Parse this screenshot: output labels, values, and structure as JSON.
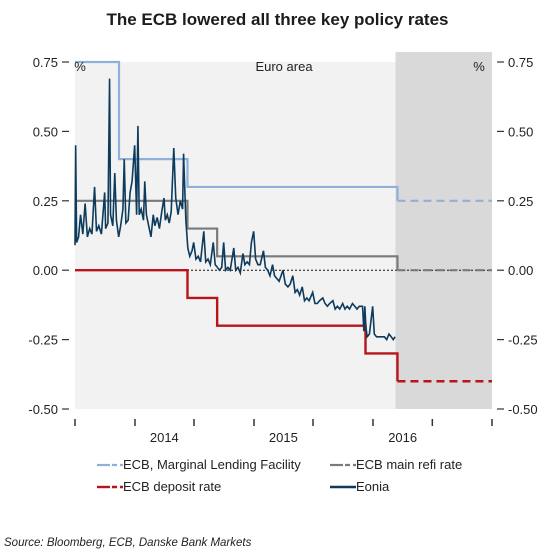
{
  "chart_data": {
    "type": "line",
    "title": "The ECB lowered all three key policy rates",
    "annotation": "Euro area",
    "unit_left": "%",
    "unit_right": "%",
    "ylim": [
      -0.5,
      0.75
    ],
    "yticks": [
      -0.5,
      -0.25,
      0.0,
      0.25,
      0.5,
      0.75
    ],
    "ytick_labels_left": [
      "-0.50",
      "-0.25",
      "0.00",
      "0.25",
      "0.50",
      "0.75"
    ],
    "ytick_labels_right": [
      "-0.50",
      "-0.25",
      "0.00",
      "0.25",
      "0.50",
      "0.75"
    ],
    "xlim": [
      "2013-07-01",
      "2016-12-31"
    ],
    "x_tick_dates": [
      "2013-07-01",
      "2014-01-01",
      "2014-07-01",
      "2015-01-01",
      "2015-07-01",
      "2016-01-01",
      "2016-07-01",
      "2016-12-31"
    ],
    "x_labels": [
      {
        "label": "2014",
        "date": "2014-04-01"
      },
      {
        "label": "2015",
        "date": "2015-04-01"
      },
      {
        "label": "2016",
        "date": "2016-04-01"
      }
    ],
    "forecast_start": "2016-03-10",
    "grid": false,
    "legend_position": "bottom",
    "series": [
      {
        "name": "ECB, Marginal Lending Facility",
        "color": "#8fb0d8",
        "style": "step",
        "points": [
          [
            "2013-07-01",
            0.75
          ],
          [
            "2013-11-13",
            0.4
          ],
          [
            "2014-06-11",
            0.3
          ],
          [
            "2015-12-09",
            0.3
          ],
          [
            "2016-03-16",
            0.25
          ]
        ],
        "forecast": [
          [
            "2016-03-16",
            0.25
          ],
          [
            "2016-12-31",
            0.25
          ]
        ]
      },
      {
        "name": "ECB main refi rate",
        "color": "#7a7a7a",
        "style": "step",
        "points": [
          [
            "2013-07-01",
            0.25
          ],
          [
            "2013-11-13",
            0.25
          ],
          [
            "2014-06-11",
            0.15
          ],
          [
            "2014-09-10",
            0.05
          ],
          [
            "2016-03-16",
            0.0
          ]
        ],
        "forecast": [
          [
            "2016-03-16",
            0.0
          ],
          [
            "2016-12-31",
            0.0
          ]
        ]
      },
      {
        "name": "ECB deposit rate",
        "color": "#b8141b",
        "style": "step",
        "points": [
          [
            "2013-07-01",
            0.0
          ],
          [
            "2014-06-11",
            -0.1
          ],
          [
            "2014-09-10",
            -0.2
          ],
          [
            "2015-12-09",
            -0.3
          ],
          [
            "2016-03-16",
            -0.4
          ]
        ],
        "forecast": [
          [
            "2016-03-16",
            -0.4
          ],
          [
            "2016-12-31",
            -0.4
          ]
        ]
      },
      {
        "name": "Eonia",
        "color": "#0e3a5c",
        "style": "line",
        "points": [
          [
            "2013-07-01",
            0.09
          ],
          [
            "2013-07-03",
            0.45
          ],
          [
            "2013-07-06",
            0.1
          ],
          [
            "2013-07-12",
            0.12
          ],
          [
            "2013-07-18",
            0.2
          ],
          [
            "2013-07-25",
            0.13
          ],
          [
            "2013-08-01",
            0.24
          ],
          [
            "2013-08-08",
            0.12
          ],
          [
            "2013-08-15",
            0.15
          ],
          [
            "2013-08-22",
            0.13
          ],
          [
            "2013-08-30",
            0.3
          ],
          [
            "2013-09-05",
            0.14
          ],
          [
            "2013-09-12",
            0.16
          ],
          [
            "2013-09-20",
            0.13
          ],
          [
            "2013-09-30",
            0.28
          ],
          [
            "2013-10-03",
            0.15
          ],
          [
            "2013-10-10",
            0.17
          ],
          [
            "2013-10-15",
            0.69
          ],
          [
            "2013-10-18",
            0.2
          ],
          [
            "2013-10-25",
            0.16
          ],
          [
            "2013-10-31",
            0.35
          ],
          [
            "2013-11-05",
            0.18
          ],
          [
            "2013-11-12",
            0.12
          ],
          [
            "2013-11-18",
            0.16
          ],
          [
            "2013-11-25",
            0.22
          ],
          [
            "2013-11-29",
            0.4
          ],
          [
            "2013-12-04",
            0.17
          ],
          [
            "2013-12-11",
            0.18
          ],
          [
            "2013-12-17",
            0.28
          ],
          [
            "2013-12-23",
            0.32
          ],
          [
            "2013-12-31",
            0.45
          ],
          [
            "2014-01-06",
            0.2
          ],
          [
            "2014-01-10",
            0.52
          ],
          [
            "2014-01-14",
            0.2
          ],
          [
            "2014-01-20",
            0.22
          ],
          [
            "2014-01-27",
            0.18
          ],
          [
            "2014-01-31",
            0.32
          ],
          [
            "2014-02-05",
            0.2
          ],
          [
            "2014-02-12",
            0.16
          ],
          [
            "2014-02-19",
            0.12
          ],
          [
            "2014-02-26",
            0.2
          ],
          [
            "2014-03-03",
            0.16
          ],
          [
            "2014-03-10",
            0.19
          ],
          [
            "2014-03-17",
            0.15
          ],
          [
            "2014-03-24",
            0.21
          ],
          [
            "2014-03-31",
            0.26
          ],
          [
            "2014-04-04",
            0.18
          ],
          [
            "2014-04-10",
            0.2
          ],
          [
            "2014-04-16",
            0.17
          ],
          [
            "2014-04-22",
            0.21
          ],
          [
            "2014-04-30",
            0.44
          ],
          [
            "2014-05-06",
            0.26
          ],
          [
            "2014-05-13",
            0.2
          ],
          [
            "2014-05-20",
            0.25
          ],
          [
            "2014-05-27",
            0.22
          ],
          [
            "2014-05-30",
            0.42
          ],
          [
            "2014-06-06",
            0.18
          ],
          [
            "2014-06-12",
            0.08
          ],
          [
            "2014-06-18",
            0.05
          ],
          [
            "2014-06-25",
            0.07
          ],
          [
            "2014-06-30",
            0.1
          ],
          [
            "2014-07-07",
            0.04
          ],
          [
            "2014-07-14",
            0.05
          ],
          [
            "2014-07-21",
            0.03
          ],
          [
            "2014-07-31",
            0.14
          ],
          [
            "2014-08-06",
            0.03
          ],
          [
            "2014-08-13",
            0.04
          ],
          [
            "2014-08-20",
            0.02
          ],
          [
            "2014-08-29",
            0.1
          ],
          [
            "2014-09-04",
            0.02
          ],
          [
            "2014-09-11",
            0.01
          ],
          [
            "2014-09-17",
            0.0
          ],
          [
            "2014-09-24",
            0.01
          ],
          [
            "2014-09-30",
            0.1
          ],
          [
            "2014-10-06",
            0.0
          ],
          [
            "2014-10-13",
            0.01
          ],
          [
            "2014-10-20",
            0.0
          ],
          [
            "2014-10-31",
            0.08
          ],
          [
            "2014-11-06",
            0.0
          ],
          [
            "2014-11-13",
            0.01
          ],
          [
            "2014-11-20",
            -0.01
          ],
          [
            "2014-11-28",
            0.06
          ],
          [
            "2014-12-04",
            0.02
          ],
          [
            "2014-12-11",
            0.03
          ],
          [
            "2014-12-18",
            0.02
          ],
          [
            "2014-12-24",
            0.1
          ],
          [
            "2014-12-31",
            0.14
          ],
          [
            "2015-01-06",
            0.04
          ],
          [
            "2015-01-13",
            0.02
          ],
          [
            "2015-01-20",
            0.02
          ],
          [
            "2015-01-30",
            0.07
          ],
          [
            "2015-02-05",
            0.01
          ],
          [
            "2015-02-12",
            0.0
          ],
          [
            "2015-02-19",
            -0.02
          ],
          [
            "2015-02-27",
            0.02
          ],
          [
            "2015-03-05",
            -0.02
          ],
          [
            "2015-03-12",
            -0.03
          ],
          [
            "2015-03-19",
            -0.04
          ],
          [
            "2015-03-31",
            0.0
          ],
          [
            "2015-04-07",
            -0.05
          ],
          [
            "2015-04-15",
            -0.06
          ],
          [
            "2015-04-22",
            -0.05
          ],
          [
            "2015-04-30",
            -0.02
          ],
          [
            "2015-05-07",
            -0.08
          ],
          [
            "2015-05-14",
            -0.07
          ],
          [
            "2015-05-21",
            -0.09
          ],
          [
            "2015-05-29",
            -0.06
          ],
          [
            "2015-06-05",
            -0.11
          ],
          [
            "2015-06-12",
            -0.1
          ],
          [
            "2015-06-19",
            -0.11
          ],
          [
            "2015-06-30",
            -0.08
          ],
          [
            "2015-07-07",
            -0.12
          ],
          [
            "2015-07-14",
            -0.12
          ],
          [
            "2015-07-21",
            -0.11
          ],
          [
            "2015-07-31",
            -0.1
          ],
          [
            "2015-08-07",
            -0.12
          ],
          [
            "2015-08-14",
            -0.13
          ],
          [
            "2015-08-21",
            -0.12
          ],
          [
            "2015-08-31",
            -0.11
          ],
          [
            "2015-09-07",
            -0.14
          ],
          [
            "2015-09-14",
            -0.13
          ],
          [
            "2015-09-21",
            -0.14
          ],
          [
            "2015-09-30",
            -0.12
          ],
          [
            "2015-10-07",
            -0.14
          ],
          [
            "2015-10-14",
            -0.13
          ],
          [
            "2015-10-21",
            -0.14
          ],
          [
            "2015-10-30",
            -0.12
          ],
          [
            "2015-11-06",
            -0.13
          ],
          [
            "2015-11-13",
            -0.14
          ],
          [
            "2015-11-20",
            -0.13
          ],
          [
            "2015-11-30",
            -0.13
          ],
          [
            "2015-12-04",
            -0.22
          ],
          [
            "2015-12-07",
            -0.13
          ],
          [
            "2015-12-10",
            -0.2
          ],
          [
            "2015-12-14",
            -0.24
          ],
          [
            "2015-12-21",
            -0.23
          ],
          [
            "2015-12-31",
            -0.13
          ],
          [
            "2016-01-05",
            -0.23
          ],
          [
            "2016-01-12",
            -0.24
          ],
          [
            "2016-01-20",
            -0.24
          ],
          [
            "2016-01-29",
            -0.24
          ],
          [
            "2016-02-05",
            -0.24
          ],
          [
            "2016-02-12",
            -0.25
          ],
          [
            "2016-02-19",
            -0.23
          ],
          [
            "2016-02-26",
            -0.24
          ],
          [
            "2016-03-03",
            -0.25
          ],
          [
            "2016-03-09",
            -0.24
          ]
        ]
      }
    ],
    "source": "Source: Bloomberg, ECB,  Danske Bank Markets"
  },
  "colors": {
    "shade": "#d9d9d9",
    "axis": "#333333",
    "zero_line": "#111111"
  }
}
